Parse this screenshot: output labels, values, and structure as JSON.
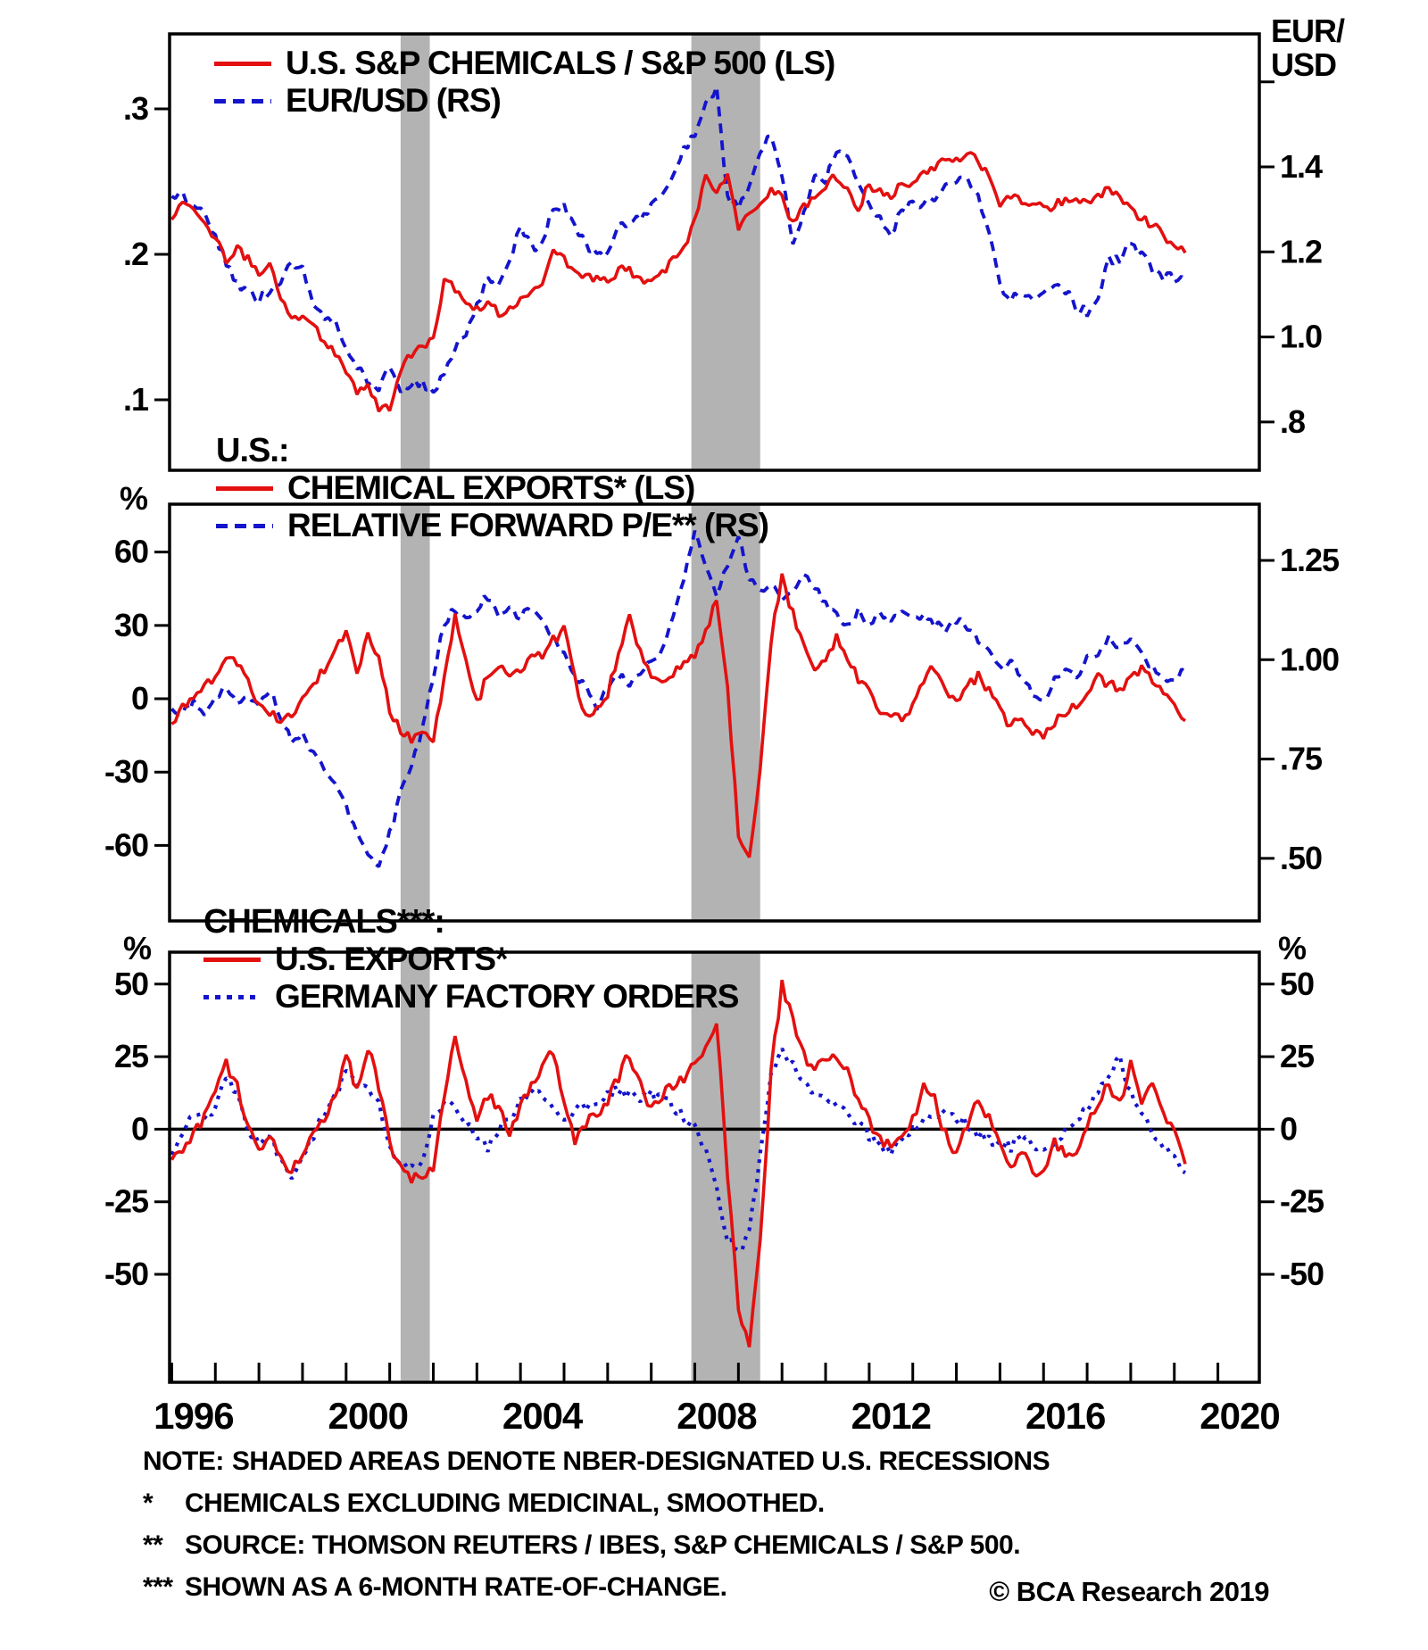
{
  "figure": {
    "copyright": "© BCA Research 2019",
    "notes": [
      {
        "marker": "NOTE:",
        "text": "SHADED AREAS DENOTE NBER-DESIGNATED U.S. RECESSIONS"
      },
      {
        "marker": "*",
        "text": "CHEMICALS EXCLUDING MEDICINAL, SMOOTHED."
      },
      {
        "marker": "**",
        "text": "SOURCE: THOMSON REUTERS / IBES, S&P CHEMICALS / S&P 500."
      },
      {
        "marker": "***",
        "text": "SHOWN AS A 6-MONTH RATE-OF-CHANGE."
      }
    ],
    "colors": {
      "red": "#e31010",
      "blue": "#1414cc",
      "recession_band": "#b3b3b3",
      "ink": "#000000"
    },
    "x_axis": {
      "range": [
        1995.95,
        2020.95
      ],
      "minor_tick_step_years": 1,
      "label_years": [
        1996,
        2000,
        2004,
        2008,
        2012,
        2016,
        2020
      ],
      "labels": [
        "1996",
        "2000",
        "2004",
        "2008",
        "2012",
        "2016",
        "2020"
      ]
    },
    "recessions": [
      {
        "start": 2001.25,
        "end": 2001.92
      },
      {
        "start": 2007.92,
        "end": 2009.5
      }
    ]
  },
  "chart_data": [
    {
      "type": "line",
      "panel": "top",
      "legend": {
        "heading": "",
        "items": [
          {
            "label": "U.S. S&P CHEMICALS / S&P 500 (LS)",
            "style": "solid",
            "color": "red"
          },
          {
            "label": "EUR/USD (RS)",
            "style": "dashed",
            "color": "blue"
          }
        ]
      },
      "right_axis_title_lines": [
        "EUR/",
        "USD"
      ],
      "left_axis": {
        "title": "",
        "range": [
          0.0515,
          0.3515
        ],
        "ticks": [
          {
            "v": 0.3,
            "label": ".3"
          },
          {
            "v": 0.2,
            "label": ".2"
          },
          {
            "v": 0.1,
            "label": ".1"
          }
        ]
      },
      "right_axis": {
        "title": "EUR/USD",
        "range": [
          0.6865,
          1.7127
        ],
        "ticks": [
          {
            "v": 1.6,
            "label": ""
          },
          {
            "v": 1.4,
            "label": "1.4"
          },
          {
            "v": 1.2,
            "label": "1.2"
          },
          {
            "v": 1.0,
            "label": "1.0"
          },
          {
            "v": 0.8,
            "label": ".8"
          }
        ]
      },
      "zero_line": false,
      "series": [
        {
          "id": "eur-usd",
          "name": "EUR/USD (RS)",
          "axis": "right",
          "line": "dashed",
          "color": "blue",
          "noise": 0.012,
          "x_start": 1996.0,
          "x_step": 0.25,
          "values": [
            1.34,
            1.33,
            1.31,
            1.29,
            1.24,
            1.17,
            1.12,
            1.11,
            1.09,
            1.11,
            1.13,
            1.18,
            1.16,
            1.07,
            1.05,
            1.03,
            0.97,
            0.93,
            0.89,
            0.87,
            0.93,
            0.87,
            0.89,
            0.89,
            0.87,
            0.92,
            0.98,
            1.0,
            1.07,
            1.14,
            1.12,
            1.17,
            1.26,
            1.21,
            1.22,
            1.3,
            1.31,
            1.26,
            1.22,
            1.19,
            1.2,
            1.26,
            1.27,
            1.28,
            1.31,
            1.34,
            1.37,
            1.44,
            1.48,
            1.56,
            1.58,
            1.33,
            1.3,
            1.36,
            1.43,
            1.48,
            1.37,
            1.23,
            1.29,
            1.38,
            1.37,
            1.44,
            1.43,
            1.35,
            1.31,
            1.28,
            1.24,
            1.3,
            1.32,
            1.31,
            1.33,
            1.36,
            1.37,
            1.38,
            1.33,
            1.25,
            1.12,
            1.09,
            1.11,
            1.09,
            1.1,
            1.13,
            1.11,
            1.07,
            1.06,
            1.09,
            1.18,
            1.18,
            1.23,
            1.19,
            1.16,
            1.14,
            1.14,
            1.13
          ]
        },
        {
          "id": "sp-chemicals-sp500-ratio",
          "name": "U.S. S&P CHEMICALS / S&P 500 (LS)",
          "axis": "left",
          "line": "solid",
          "color": "red",
          "noise": 0.0035,
          "x_start": 1996.0,
          "x_step": 0.25,
          "values": [
            0.225,
            0.235,
            0.228,
            0.222,
            0.212,
            0.196,
            0.205,
            0.196,
            0.188,
            0.193,
            0.168,
            0.158,
            0.158,
            0.15,
            0.14,
            0.132,
            0.12,
            0.106,
            0.112,
            0.092,
            0.095,
            0.118,
            0.132,
            0.138,
            0.14,
            0.183,
            0.176,
            0.168,
            0.163,
            0.168,
            0.158,
            0.162,
            0.168,
            0.172,
            0.178,
            0.202,
            0.196,
            0.186,
            0.183,
            0.183,
            0.184,
            0.188,
            0.19,
            0.182,
            0.18,
            0.186,
            0.196,
            0.205,
            0.222,
            0.256,
            0.242,
            0.256,
            0.215,
            0.228,
            0.238,
            0.244,
            0.238,
            0.222,
            0.232,
            0.24,
            0.248,
            0.254,
            0.244,
            0.232,
            0.248,
            0.244,
            0.24,
            0.248,
            0.25,
            0.255,
            0.26,
            0.268,
            0.264,
            0.268,
            0.264,
            0.252,
            0.232,
            0.24,
            0.236,
            0.236,
            0.23,
            0.234,
            0.236,
            0.236,
            0.236,
            0.24,
            0.245,
            0.237,
            0.23,
            0.226,
            0.22,
            0.212,
            0.205,
            0.201
          ]
        }
      ]
    },
    {
      "type": "line",
      "panel": "middle",
      "legend": {
        "heading": "U.S.:",
        "items": [
          {
            "label": "CHEMICAL EXPORTS* (LS)",
            "style": "solid",
            "color": "red"
          },
          {
            "label": "RELATIVE FORWARD P/E** (RS)",
            "style": "dashed",
            "color": "blue"
          }
        ]
      },
      "left_axis": {
        "title": "%",
        "range": [
          -90.9,
          79.6
        ],
        "ticks": [
          {
            "v": 60,
            "label": "60"
          },
          {
            "v": 30,
            "label": "30"
          },
          {
            "v": 0,
            "label": "0"
          },
          {
            "v": -30,
            "label": "-30"
          },
          {
            "v": -60,
            "label": "-60"
          }
        ]
      },
      "right_axis": {
        "title": "",
        "range": [
          0.3426,
          1.3915
        ],
        "ticks": [
          {
            "v": 1.25,
            "label": "1.25"
          },
          {
            "v": 1.0,
            "label": "1.00"
          },
          {
            "v": 0.75,
            "label": ".75"
          },
          {
            "v": 0.5,
            "label": ".50"
          }
        ]
      },
      "zero_line": false,
      "series": [
        {
          "id": "relative-forward-pe",
          "name": "RELATIVE FORWARD P/E** (RS)",
          "axis": "right",
          "line": "dashed",
          "color": "blue",
          "noise": 0.012,
          "x_start": 1996.0,
          "x_step": 0.25,
          "values": [
            0.88,
            0.87,
            0.89,
            0.87,
            0.91,
            0.93,
            0.89,
            0.91,
            0.89,
            0.93,
            0.86,
            0.79,
            0.81,
            0.76,
            0.72,
            0.68,
            0.63,
            0.56,
            0.51,
            0.48,
            0.56,
            0.66,
            0.73,
            0.83,
            0.96,
            1.09,
            1.13,
            1.1,
            1.13,
            1.16,
            1.11,
            1.13,
            1.11,
            1.13,
            1.09,
            1.06,
            1.01,
            0.96,
            0.93,
            0.88,
            0.93,
            0.96,
            0.94,
            0.97,
            0.99,
            1.03,
            1.11,
            1.21,
            1.32,
            1.24,
            1.17,
            1.23,
            1.3,
            1.21,
            1.17,
            1.19,
            1.14,
            1.17,
            1.21,
            1.19,
            1.14,
            1.11,
            1.09,
            1.12,
            1.09,
            1.12,
            1.1,
            1.12,
            1.1,
            1.12,
            1.09,
            1.08,
            1.1,
            1.08,
            1.05,
            1.02,
            0.98,
            1.0,
            0.95,
            0.92,
            0.9,
            0.95,
            0.98,
            0.95,
            1.0,
            1.02,
            1.05,
            1.03,
            1.05,
            1.02,
            0.98,
            0.95,
            0.96,
            0.97
          ]
        },
        {
          "id": "us-chemical-exports",
          "name": "CHEMICAL EXPORTS* (LS)",
          "axis": "left",
          "line": "solid",
          "color": "red",
          "noise": 2.2,
          "x_start": 1996.0,
          "x_step": 0.25,
          "values": [
            -9,
            -4,
            2,
            5,
            10,
            18,
            14,
            6,
            -2,
            -6,
            -9,
            -7,
            2,
            6,
            12,
            20,
            27,
            12,
            25,
            18,
            -5,
            -13,
            -16,
            -15,
            -16,
            8,
            33,
            18,
            -2,
            10,
            14,
            8,
            12,
            16,
            18,
            24,
            28,
            8,
            -7,
            -4,
            2,
            18,
            33,
            20,
            10,
            6,
            10,
            14,
            18,
            28,
            40,
            5,
            -55,
            -63,
            -30,
            25,
            49,
            35,
            22,
            12,
            15,
            25,
            18,
            8,
            2,
            -4,
            -7,
            -8,
            -4,
            8,
            13,
            4,
            -1,
            6,
            9,
            3,
            -5,
            -11,
            -8,
            -14,
            -16,
            -10,
            -6,
            -3,
            4,
            9,
            6,
            4,
            8,
            12,
            7,
            2,
            -3,
            -9
          ]
        }
      ]
    },
    {
      "type": "line",
      "panel": "bottom",
      "legend": {
        "heading": "CHEMICALS***:",
        "items": [
          {
            "label": "U.S. EXPORTS*",
            "style": "solid",
            "color": "red"
          },
          {
            "label": "GERMANY FACTORY ORDERS",
            "style": "dotted",
            "color": "blue"
          }
        ]
      },
      "left_axis": {
        "title": "%",
        "range": [
          -87.2,
          61.0
        ],
        "ticks": [
          {
            "v": 50,
            "label": "50"
          },
          {
            "v": 25,
            "label": "25"
          },
          {
            "v": 0,
            "label": "0"
          },
          {
            "v": -25,
            "label": "-25"
          },
          {
            "v": -50,
            "label": "-50"
          }
        ]
      },
      "right_axis": {
        "title": "%",
        "range": [
          -87.2,
          61.0
        ],
        "ticks": [
          {
            "v": 50,
            "label": "50"
          },
          {
            "v": 25,
            "label": "25"
          },
          {
            "v": 0,
            "label": "0"
          },
          {
            "v": -25,
            "label": "-25"
          },
          {
            "v": -50,
            "label": "-50"
          }
        ]
      },
      "zero_line": true,
      "series": [
        {
          "id": "germany-factory-orders",
          "name": "GERMANY FACTORY ORDERS",
          "axis": "left",
          "line": "dotted",
          "color": "blue",
          "noise": 2.0,
          "x_start": 1996.0,
          "x_step": 0.25,
          "values": [
            -8,
            0,
            6,
            3,
            8,
            18,
            12,
            0,
            -4,
            -2,
            -12,
            -18,
            -10,
            -2,
            6,
            12,
            20,
            16,
            14,
            8,
            -6,
            -12,
            -14,
            -10,
            4,
            10,
            6,
            2,
            -4,
            -6,
            0,
            4,
            10,
            13,
            12,
            8,
            4,
            6,
            8,
            10,
            12,
            14,
            12,
            10,
            12,
            10,
            8,
            4,
            0,
            -8,
            -20,
            -38,
            -43,
            -35,
            -10,
            18,
            28,
            22,
            16,
            12,
            10,
            8,
            5,
            2,
            -2,
            -6,
            -8,
            -4,
            0,
            4,
            6,
            5,
            4,
            2,
            -2,
            -4,
            -4,
            -6,
            -3,
            -5,
            -8,
            -5,
            0,
            4,
            8,
            12,
            18,
            25,
            12,
            6,
            -2,
            -6,
            -10,
            -15
          ]
        },
        {
          "id": "us-exports-chemicals",
          "name": "U.S. EXPORTS*",
          "axis": "left",
          "line": "solid",
          "color": "red",
          "noise": 2.2,
          "x_start": 1996.0,
          "x_step": 0.25,
          "values": [
            -12,
            -6,
            -2,
            4,
            12,
            22,
            15,
            2,
            -6,
            -3,
            -10,
            -15,
            -8,
            -2,
            4,
            10,
            25,
            14,
            28,
            15,
            -5,
            -14,
            -17,
            -15,
            -14,
            10,
            33,
            15,
            2,
            12,
            8,
            -1,
            8,
            15,
            22,
            27,
            10,
            -4,
            2,
            6,
            10,
            18,
            26,
            15,
            8,
            12,
            15,
            18,
            22,
            30,
            37,
            -15,
            -62,
            -75,
            -40,
            20,
            50,
            38,
            25,
            20,
            24,
            26,
            20,
            10,
            2,
            -3,
            -6,
            -4,
            4,
            14,
            10,
            -2,
            -8,
            2,
            10,
            4,
            -6,
            -12,
            -8,
            -15,
            -14,
            -4,
            -8,
            -10,
            2,
            10,
            15,
            8,
            22,
            8,
            15,
            4,
            -2,
            -12
          ]
        }
      ]
    }
  ]
}
